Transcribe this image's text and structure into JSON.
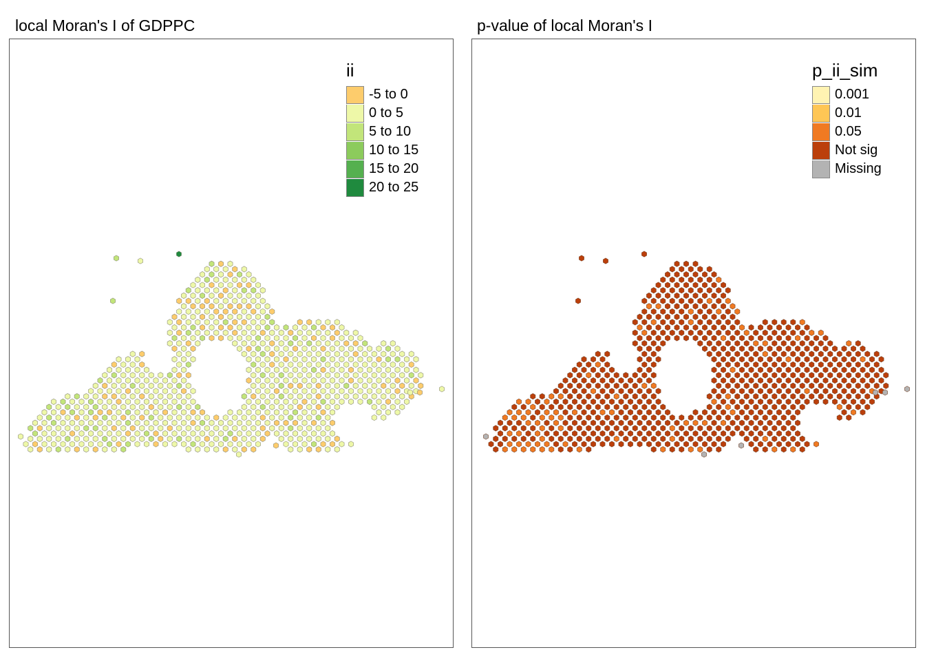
{
  "left": {
    "title": "local Moran's I of GDPPC",
    "legend": {
      "title": "ii",
      "items": [
        {
          "label": "-5 to 0",
          "color": "#fdcc6c"
        },
        {
          "label": "0 to 5",
          "color": "#eef8a8"
        },
        {
          "label": "5 to 10",
          "color": "#c2e57a"
        },
        {
          "label": "10 to 15",
          "color": "#8ccb5c"
        },
        {
          "label": "15 to 20",
          "color": "#55b04f"
        },
        {
          "label": "20 to 25",
          "color": "#1f8a3e"
        }
      ]
    }
  },
  "right": {
    "title": "p-value of local Moran's I",
    "legend": {
      "title": "p_ii_sim",
      "items": [
        {
          "label": "0.001",
          "color": "#fff3b2"
        },
        {
          "label": "0.01",
          "color": "#fec655"
        },
        {
          "label": "0.05",
          "color": "#f07a22"
        },
        {
          "label": "Not sig",
          "color": "#bb3f0b"
        },
        {
          "label": "Missing",
          "color": "#b3b3b3"
        }
      ]
    }
  }
}
